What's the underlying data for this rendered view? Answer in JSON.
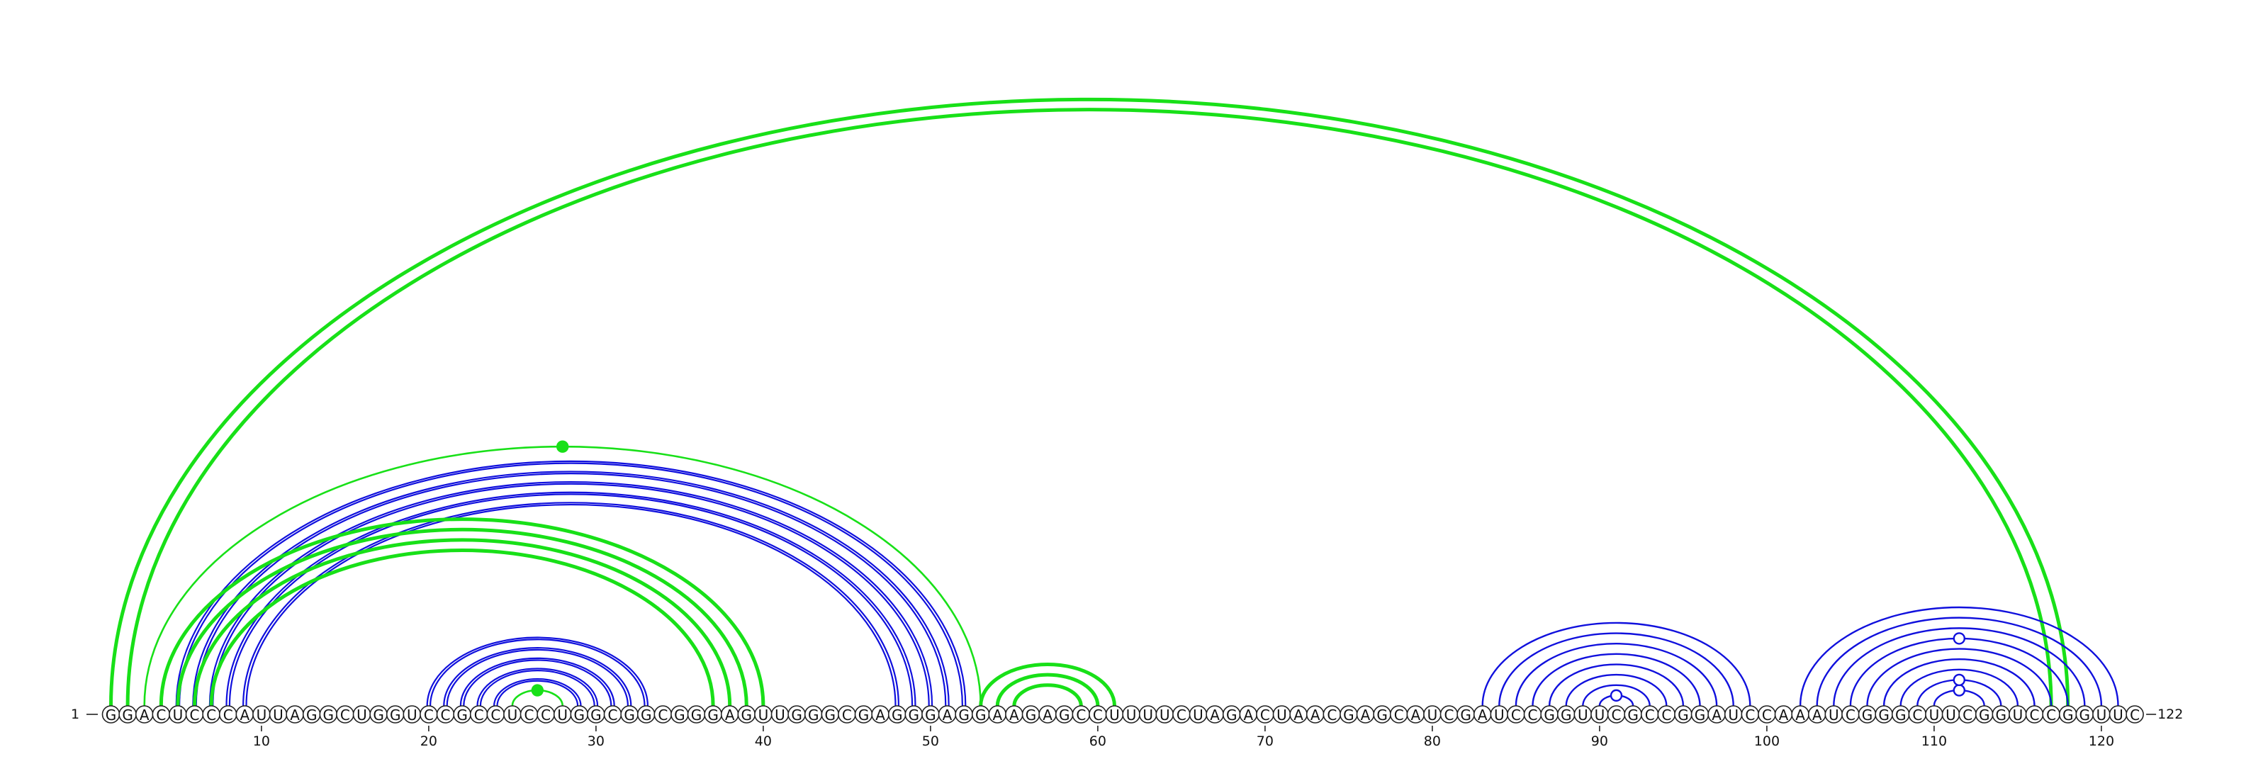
{
  "sequence": "GGACUCCCAUUAGGCUGGUCCGCCUCCUGGCGGCGGGAGUUGGGCGAGGGAGGAAGAGCCUUUUCUAGACUAACGAGCAUCGAUCCGGUUCGCCGGAUCCAAAUCGGGCUUCGGUCCGGUUC",
  "start_label": "1",
  "end_label": "122",
  "ticks": [
    10,
    20,
    30,
    40,
    50,
    60,
    70,
    80,
    90,
    100,
    110,
    120
  ],
  "colors": {
    "blue": "#1010dd",
    "green": "#18e018"
  },
  "arc_groups": [
    {
      "name": "outer-long-pseudoknot",
      "color": "green",
      "stroke": "thick",
      "pairs": [
        [
          1,
          118
        ],
        [
          2,
          117
        ]
      ]
    },
    {
      "name": "helix-5-52",
      "color": "blue",
      "stroke": "double",
      "pairs": [
        [
          5,
          52
        ],
        [
          6,
          51
        ],
        [
          7,
          50
        ],
        [
          8,
          49
        ],
        [
          9,
          48
        ]
      ]
    },
    {
      "name": "helix-3-53",
      "color": "green",
      "stroke": "thin",
      "pairs": [
        [
          3,
          53
        ]
      ]
    },
    {
      "name": "helix-4-40-pk",
      "color": "green",
      "stroke": "thick",
      "pairs": [
        [
          4,
          40
        ],
        [
          5,
          39
        ],
        [
          6,
          38
        ],
        [
          7,
          37
        ]
      ]
    },
    {
      "name": "helix-20-33",
      "color": "blue",
      "stroke": "double",
      "pairs": [
        [
          20,
          33
        ],
        [
          21,
          32
        ],
        [
          22,
          31
        ],
        [
          23,
          30
        ],
        [
          24,
          29
        ]
      ]
    },
    {
      "name": "hairpin-25-28",
      "color": "green",
      "stroke": "thin",
      "pairs": [
        [
          25,
          28
        ]
      ]
    },
    {
      "name": "hairpin-53-61",
      "color": "green",
      "stroke": "thick",
      "pairs": [
        [
          53,
          61
        ],
        [
          54,
          60
        ],
        [
          55,
          59
        ]
      ]
    },
    {
      "name": "helix-83-99",
      "color": "blue",
      "stroke": "single",
      "pairs": [
        [
          83,
          99
        ],
        [
          84,
          98
        ],
        [
          85,
          97
        ],
        [
          86,
          96
        ],
        [
          87,
          95
        ],
        [
          88,
          94
        ],
        [
          89,
          93
        ],
        [
          90,
          92
        ]
      ]
    },
    {
      "name": "helix-102-121",
      "color": "blue",
      "stroke": "single",
      "pairs": [
        [
          102,
          121
        ],
        [
          103,
          120
        ],
        [
          104,
          119
        ],
        [
          105,
          118
        ],
        [
          106,
          117
        ],
        [
          107,
          116
        ],
        [
          108,
          115
        ],
        [
          109,
          114
        ],
        [
          110,
          113
        ]
      ]
    }
  ],
  "markers": [
    {
      "name": "filled-marker-3-53",
      "color": "green",
      "style": "filled",
      "pair": [
        3,
        53
      ]
    },
    {
      "name": "filled-marker-25-28",
      "color": "green",
      "style": "filled",
      "pair": [
        25,
        28
      ]
    },
    {
      "name": "open-marker-90-92",
      "color": "blue",
      "style": "open",
      "pair": [
        90,
        92
      ]
    },
    {
      "name": "open-marker-110-113",
      "color": "blue",
      "style": "open",
      "pair": [
        110,
        113
      ]
    },
    {
      "name": "open-marker-109-114",
      "color": "blue",
      "style": "open",
      "pair": [
        109,
        114
      ]
    },
    {
      "name": "open-marker-105-118",
      "color": "blue",
      "style": "open",
      "pair": [
        105,
        118
      ]
    }
  ]
}
